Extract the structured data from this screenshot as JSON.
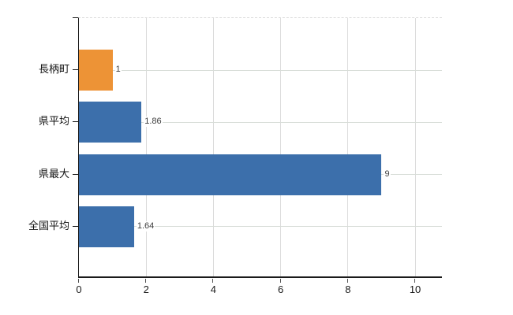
{
  "chart_data": {
    "type": "bar",
    "orientation": "horizontal",
    "title": "",
    "xlabel": "",
    "ylabel": "",
    "categories": [
      "長柄町",
      "県平均",
      "県最大",
      "全国平均"
    ],
    "values": [
      1,
      1.86,
      9,
      1.64
    ],
    "value_labels": [
      "1",
      "1.86",
      "9",
      "1.64"
    ],
    "bar_colors": [
      "#ED9336",
      "#3C6FAB",
      "#3C6FAB",
      "#3C6FAB"
    ],
    "x_ticks": [
      0,
      2,
      4,
      6,
      8,
      10
    ],
    "x_tick_labels": [
      "0",
      "2",
      "4",
      "6",
      "8",
      "10"
    ],
    "xlim": [
      0,
      10.82
    ],
    "grid": "on",
    "legend": "none"
  },
  "style_colors": {
    "bar_orange": "#ED9336",
    "bar_blue": "#3C6FAB",
    "vertical_gridline": "#dbdbdb",
    "horizontal_gridline": "#d8ddd8",
    "axis": "#1a1a1a",
    "value_label_text": "#3d3d3d",
    "background": "#ffffff"
  }
}
